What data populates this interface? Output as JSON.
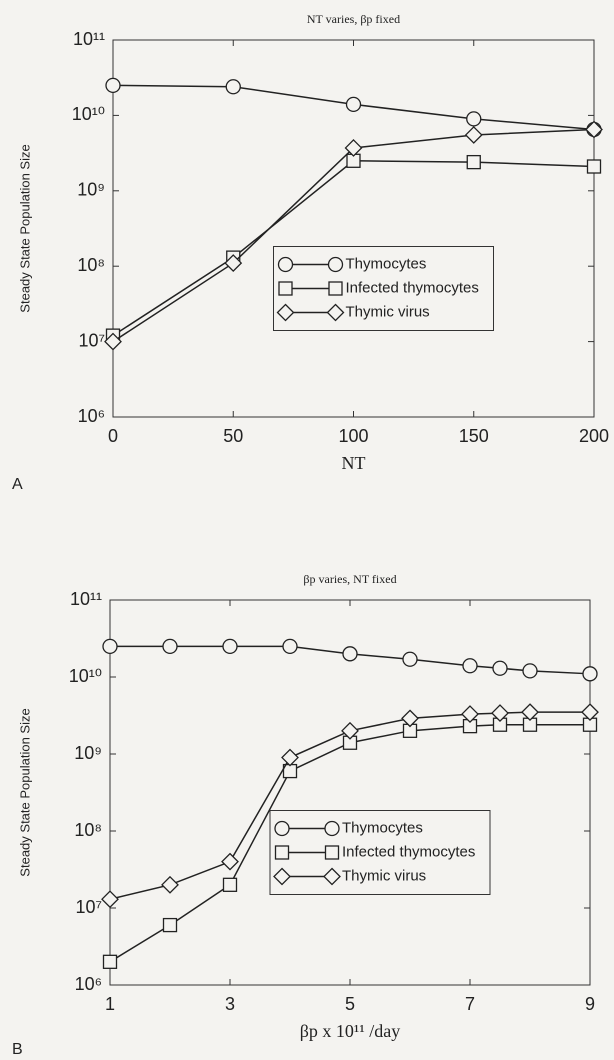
{
  "chart_data": [
    {
      "type": "line",
      "panel": "A",
      "title": "NT varies, βp fixed",
      "xlabel": "NT",
      "ylabel": "Steady State Population Size",
      "x": [
        0,
        50,
        100,
        150,
        200
      ],
      "xlim": [
        0,
        200
      ],
      "xticks": [
        0,
        50,
        100,
        150,
        200
      ],
      "ylim": [
        1000000,
        100000000000
      ],
      "ylog": true,
      "yticks": [
        {
          "value": 1000000,
          "label": "10⁶"
        },
        {
          "value": 10000000,
          "label": "10⁷"
        },
        {
          "value": 100000000,
          "label": "10⁸"
        },
        {
          "value": 1000000000,
          "label": "10⁹"
        },
        {
          "value": 10000000000,
          "label": "10¹⁰"
        },
        {
          "value": 100000000000,
          "label": "10¹¹"
        }
      ],
      "legend_loc": "center",
      "grid": false,
      "series": [
        {
          "name": "Thymocytes",
          "color": "#222222",
          "marker": "circle",
          "values": [
            25000000000,
            24000000000,
            14000000000,
            9000000000,
            6500000000
          ]
        },
        {
          "name": "Infected thymocytes",
          "color": "#222222",
          "marker": "square",
          "values": [
            12000000,
            130000000,
            2500000000,
            2400000000,
            2100000000
          ]
        },
        {
          "name": "Thymic virus",
          "color": "#222222",
          "marker": "diamond",
          "values": [
            10000000,
            110000000,
            3700000000,
            5500000000,
            6500000000
          ]
        }
      ]
    },
    {
      "type": "line",
      "panel": "B",
      "title": "βp varies, NT fixed",
      "xlabel": "βp x 10¹¹ /day",
      "ylabel": "Steady State Population Size",
      "x": [
        1,
        2,
        3,
        4,
        5,
        6,
        7,
        7.5,
        8,
        9
      ],
      "xlim": [
        1,
        9
      ],
      "xticks": [
        1,
        3,
        5,
        7,
        9
      ],
      "ylim": [
        1000000,
        100000000000
      ],
      "ylog": true,
      "yticks": [
        {
          "value": 1000000,
          "label": "10⁶"
        },
        {
          "value": 10000000,
          "label": "10⁷"
        },
        {
          "value": 100000000,
          "label": "10⁸"
        },
        {
          "value": 1000000000,
          "label": "10⁹"
        },
        {
          "value": 10000000000,
          "label": "10¹⁰"
        },
        {
          "value": 100000000000,
          "label": "10¹¹"
        }
      ],
      "legend_loc": "center",
      "grid": false,
      "series": [
        {
          "name": "Thymocytes",
          "color": "#222222",
          "marker": "circle",
          "values": [
            25000000000,
            25000000000,
            25000000000,
            25000000000,
            20000000000,
            17000000000,
            14000000000,
            13000000000,
            12000000000,
            11000000000
          ]
        },
        {
          "name": "Infected thymocytes",
          "color": "#222222",
          "marker": "square",
          "values": [
            2000000,
            6000000,
            20000000,
            600000000,
            1400000000,
            2000000000,
            2300000000,
            2400000000,
            2400000000,
            2400000000
          ]
        },
        {
          "name": "Thymic virus",
          "color": "#222222",
          "marker": "diamond",
          "values": [
            13000000,
            20000000,
            40000000,
            900000000,
            2000000000,
            2900000000,
            3300000000,
            3400000000,
            3500000000,
            3500000000
          ]
        }
      ]
    }
  ]
}
